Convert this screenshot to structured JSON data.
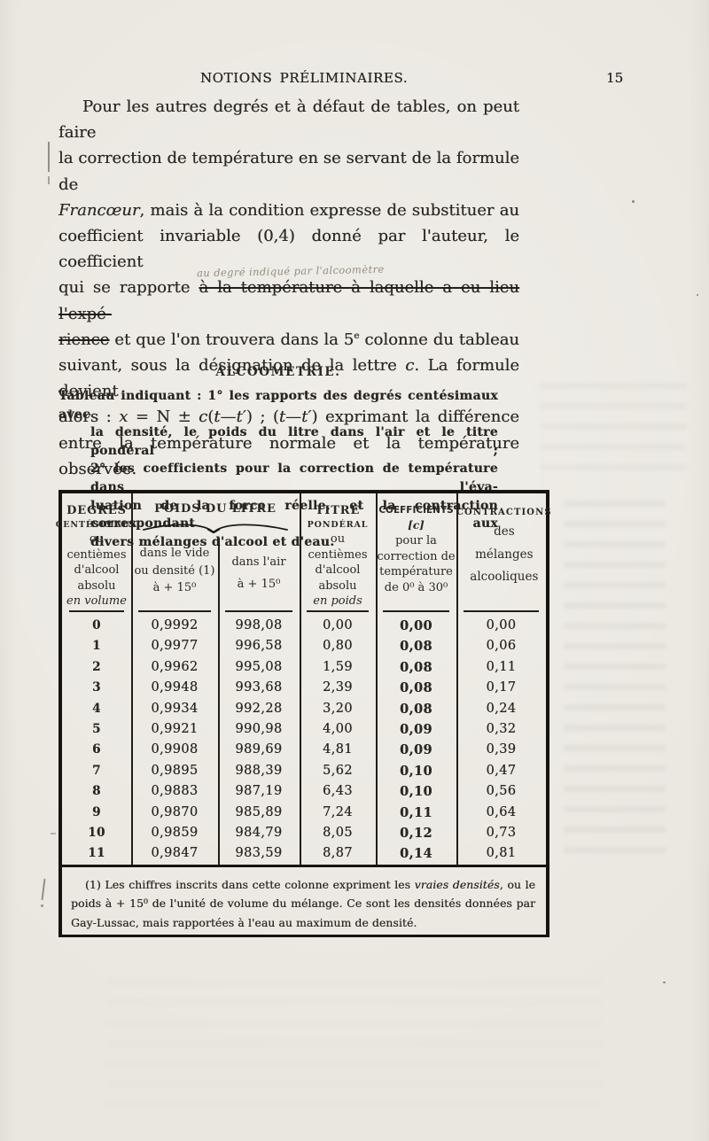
{
  "page": {
    "running_header": "NOTIONS PRÉLIMINAIRES.",
    "page_number": "15"
  },
  "intro_paragraph": {
    "lines": [
      {
        "indent": true,
        "segments": [
          {
            "t": "Pour les autres degrés et à défaut de tables, on peut faire"
          }
        ]
      },
      {
        "segments": [
          {
            "t": "la correction de température en se servant de la formule de"
          }
        ]
      },
      {
        "segments": [
          {
            "t": "Francœur",
            "style": "italic"
          },
          {
            "t": ", mais à la condition expresse de substituer au"
          }
        ]
      },
      {
        "segments": [
          {
            "t": "coefficient invariable (0,4) donné par l'auteur, le coefficient"
          }
        ]
      },
      {
        "segments": [
          {
            "t": "qui se rapporte "
          },
          {
            "t": "à la température à laquelle a eu lieu l'expé-",
            "style": "strike",
            "annotation": "au degré indiqué par l'alcoomètre"
          }
        ]
      },
      {
        "segments": [
          {
            "t": "rience",
            "style": "strike"
          },
          {
            "t": " et que l'on trouvera dans la 5"
          },
          {
            "t": "e",
            "style": "sup"
          },
          {
            "t": " colonne du tableau"
          }
        ]
      },
      {
        "segments": [
          {
            "t": "suivant, sous la désignation de la lettre "
          },
          {
            "t": "c",
            "style": "italic"
          },
          {
            "t": ". La formule devient"
          }
        ]
      },
      {
        "segments": [
          {
            "t": "alors : "
          },
          {
            "t": "x",
            "style": "italic"
          },
          {
            "t": " = N ± "
          },
          {
            "t": "c",
            "style": "italic"
          },
          {
            "t": "("
          },
          {
            "t": "t",
            "style": "italic"
          },
          {
            "t": "—"
          },
          {
            "t": "t′",
            "style": "italic"
          },
          {
            "t": ") ; ("
          },
          {
            "t": "t",
            "style": "italic"
          },
          {
            "t": "—"
          },
          {
            "t": "t′",
            "style": "italic"
          },
          {
            "t": ") exprimant la différence"
          }
        ]
      },
      {
        "last": true,
        "segments": [
          {
            "t": "entre la température normale et la température observée."
          }
        ]
      }
    ]
  },
  "section": {
    "title": "ALCOOMÉTRIE."
  },
  "table_caption": {
    "lines": [
      {
        "segments": [
          {
            "t": "Tableau indiquant : 1° les rapports des degrés centésimaux avec"
          }
        ]
      },
      {
        "cls": "hang",
        "segments": [
          {
            "t": "la densité, le poids du litre dans l'air et le titre pondéral ;"
          }
        ]
      },
      {
        "cls": "hang",
        "segments": [
          {
            "t": "2° les coefficients pour la correction de température dans l'éva-"
          }
        ]
      },
      {
        "cls": "hang",
        "segments": [
          {
            "t": "luation de la force réelle, et la contraction correspondant aux"
          }
        ]
      },
      {
        "cls": "hang",
        "last": true,
        "segments": [
          {
            "t": "divers mélanges d'alcool et d'eau."
          }
        ]
      }
    ]
  },
  "table": {
    "header": {
      "col_degrees": [
        "DEGRÉS",
        "CENTÉSIMAUX",
        "ou",
        "centièmes",
        "d'alcool absolu",
        "en volume"
      ],
      "poids_title": "POIDS DU LITRE",
      "col_vide": [
        "dans le vide",
        "ou densité (1)",
        "à + 15⁰"
      ],
      "col_air": [
        "dans l'air",
        "à + 15⁰"
      ],
      "col_titre": [
        "TITRE",
        "PONDÉRAL",
        "ou",
        "centièmes",
        "d'alcool absolu",
        "en poids"
      ],
      "col_coeff": [
        "COEFFICIENTS",
        "[c]",
        "pour la",
        "correction de",
        "température",
        "de 0⁰ à 30⁰"
      ],
      "col_contr": [
        "CONTRACTIONS",
        "des",
        "mélanges",
        "alcooliques"
      ]
    },
    "rows": [
      [
        "0",
        "0,9992",
        "998,08",
        "0,00",
        "0,00",
        "0,00"
      ],
      [
        "1",
        "0,9977",
        "996,58",
        "0,80",
        "0,08",
        "0,06"
      ],
      [
        "2",
        "0,9962",
        "995,08",
        "1,59",
        "0,08",
        "0,11"
      ],
      [
        "3",
        "0,9948",
        "993,68",
        "2,39",
        "0,08",
        "0,17"
      ],
      [
        "4",
        "0,9934",
        "992,28",
        "3,20",
        "0,08",
        "0,24"
      ],
      [
        "5",
        "0,9921",
        "990,98",
        "4,00",
        "0,09",
        "0,32"
      ],
      [
        "6",
        "0,9908",
        "989,69",
        "4,81",
        "0,09",
        "0,39"
      ],
      [
        "7",
        "0,9895",
        "988,39",
        "5,62",
        "0,10",
        "0,47"
      ],
      [
        "8",
        "0,9883",
        "987,19",
        "6,43",
        "0,10",
        "0,56"
      ],
      [
        "9",
        "0,9870",
        "985,89",
        "7,24",
        "0,11",
        "0,64"
      ],
      [
        "10",
        "0,9859",
        "984,79",
        "8,05",
        "0,12",
        "0,73"
      ],
      [
        "11",
        "0,9847",
        "983,59",
        "8,87",
        "0,14",
        "0,81"
      ]
    ],
    "footnote": {
      "segments": [
        {
          "t": "(1) Les chiffres inscrits dans cette colonne expriment les "
        },
        {
          "t": "vraies densités",
          "style": "italic"
        },
        {
          "t": ", ou le poids à + 15⁰ de l'unité de volume du mélange. Ce sont les densités données par Gay-Lussac, mais rapportées à l'eau au maximum de densité."
        }
      ]
    }
  },
  "colors": {
    "paper": "#e9e6df",
    "ink": "#2b2722",
    "pencil": "#968d7b",
    "border": "#17130e"
  }
}
